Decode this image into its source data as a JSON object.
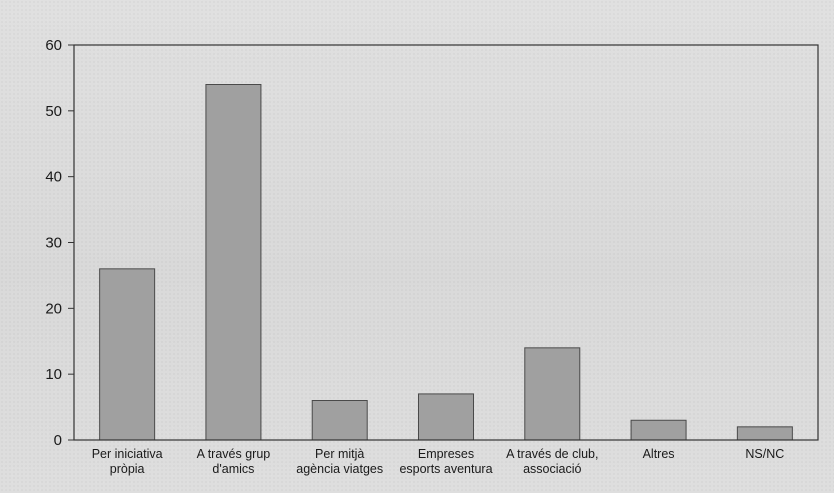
{
  "chart_data": {
    "type": "bar",
    "categories": [
      [
        "Per iniciativa",
        "pròpia"
      ],
      [
        "A través grup",
        "d'amics"
      ],
      [
        "Per mitjà",
        "agència viatges"
      ],
      [
        "Empreses",
        "esports aventura"
      ],
      [
        "A través de club,",
        "associació"
      ],
      [
        "Altres"
      ],
      [
        "NS/NC"
      ]
    ],
    "values": [
      26,
      54,
      6,
      7,
      14,
      3,
      2
    ],
    "ylim": [
      0,
      60
    ],
    "yticks": [
      0,
      10,
      20,
      30,
      40,
      50,
      60
    ],
    "title": "",
    "xlabel": "",
    "ylabel": "",
    "grid": false,
    "bar_color": "#a0a0a0",
    "bar_edge_color": "#4a4a4a",
    "axis_color": "#333333"
  }
}
